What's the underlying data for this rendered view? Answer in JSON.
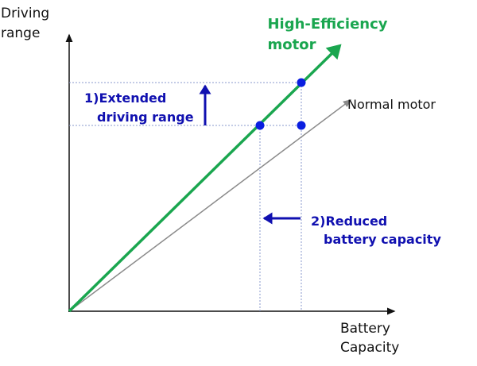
{
  "y_axis_label": [
    "Driving",
    "range"
  ],
  "x_axis_label": [
    "Battery",
    "Capacity"
  ],
  "series": {
    "high_efficiency": {
      "label": [
        "High-Efficiency",
        "motor"
      ],
      "color": "#1aa64f"
    },
    "normal": {
      "label": "Normal motor",
      "color": "#8a8a8a"
    }
  },
  "annotations": {
    "extended": [
      "1)Extended",
      "driving range"
    ],
    "reduced": [
      "2)Reduced",
      "battery capacity"
    ],
    "color": "#1010b0"
  }
}
